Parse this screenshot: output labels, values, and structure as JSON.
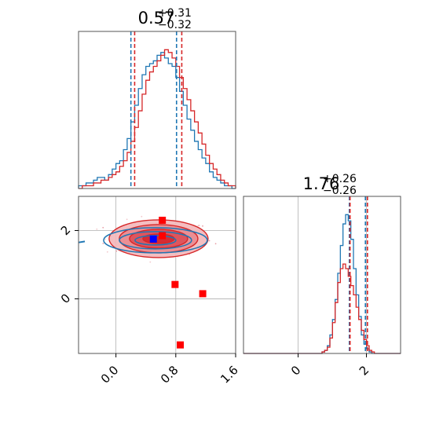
{
  "figure": "corner plot",
  "chart_data": [
    {
      "panel": "marginal-x",
      "type": "histogram",
      "title": {
        "value": "0.57",
        "plus": "+0.31",
        "minus": "−0.32"
      },
      "xlim": [
        -0.5,
        1.6
      ],
      "series": [
        {
          "name": "",
          "color": "#1f77b4",
          "quantile_lines": [
            0.2,
            0.81
          ],
          "counts": [
            1,
            1,
            2,
            2,
            3,
            4,
            4,
            3,
            5,
            7,
            9,
            10,
            14,
            18,
            24,
            30,
            36,
            41,
            44,
            45,
            46,
            48,
            49,
            47,
            45,
            44,
            40,
            35,
            30,
            25,
            21,
            17,
            14,
            11,
            9,
            6,
            4,
            3,
            2,
            1,
            1,
            0
          ]
        },
        {
          "name": "",
          "color": "#d62728",
          "quantile_lines": [
            0.25,
            0.88
          ],
          "counts": [
            0,
            1,
            1,
            1,
            2,
            2,
            3,
            3,
            4,
            5,
            6,
            8,
            10,
            13,
            17,
            22,
            28,
            34,
            39,
            42,
            44,
            46,
            48,
            50,
            49,
            47,
            44,
            40,
            36,
            32,
            28,
            24,
            20,
            16,
            12,
            9,
            7,
            5,
            3,
            2,
            1,
            1
          ]
        }
      ]
    },
    {
      "panel": "joint",
      "type": "contour-scatter",
      "xlim": [
        -0.5,
        1.6
      ],
      "ylim": [
        -1.6,
        3.0
      ],
      "xticks": [
        "0.0",
        "0.8",
        "1.6"
      ],
      "yticks": [
        "0",
        "2"
      ],
      "center_x": 0.57,
      "center_y": 1.76,
      "markers": [
        {
          "x": 0.62,
          "y": 2.3,
          "color": "#ff0000"
        },
        {
          "x": 0.62,
          "y": 1.85,
          "color": "#ff0000"
        },
        {
          "x": 0.5,
          "y": 1.75,
          "color": "#0000ff"
        },
        {
          "x": 0.79,
          "y": 0.42,
          "color": "#ff0000"
        },
        {
          "x": 1.16,
          "y": 0.15,
          "color": "#ff0000"
        },
        {
          "x": 0.86,
          "y": -1.35,
          "color": "#ff0000"
        }
      ]
    },
    {
      "panel": "marginal-y",
      "type": "histogram",
      "title": {
        "value": "1.76",
        "plus": "+0.26",
        "minus": "−0.26"
      },
      "xlim": [
        -1.6,
        3.0
      ],
      "xticks": [
        "0",
        "2"
      ],
      "series": [
        {
          "name": "",
          "color": "#1f77b4",
          "quantile_lines": [
            1.5,
            1.97
          ],
          "counts": [
            0,
            0,
            0,
            0,
            0,
            0,
            0,
            0,
            0,
            0,
            0,
            0,
            0,
            0,
            0,
            0,
            0,
            0,
            0,
            0,
            0,
            0,
            0,
            0,
            0,
            0,
            0,
            0,
            0,
            0,
            1,
            2,
            5,
            12,
            22,
            35,
            52,
            70,
            84,
            90,
            86,
            74,
            55,
            38,
            24,
            12,
            6,
            3,
            1,
            0,
            0,
            0,
            0,
            0,
            0,
            0,
            0,
            0,
            0,
            0
          ]
        },
        {
          "name": "",
          "color": "#d62728",
          "quantile_lines": [
            1.52,
            2.03
          ],
          "counts": [
            0,
            0,
            0,
            0,
            0,
            0,
            0,
            0,
            0,
            0,
            0,
            0,
            0,
            0,
            0,
            0,
            0,
            0,
            0,
            0,
            0,
            0,
            0,
            0,
            0,
            0,
            0,
            0,
            0,
            0,
            1,
            2,
            4,
            10,
            20,
            33,
            46,
            55,
            58,
            55,
            50,
            44,
            38,
            30,
            22,
            15,
            9,
            5,
            2,
            1,
            0,
            0,
            0,
            0,
            0,
            0,
            0,
            0,
            0,
            0
          ]
        }
      ]
    }
  ]
}
